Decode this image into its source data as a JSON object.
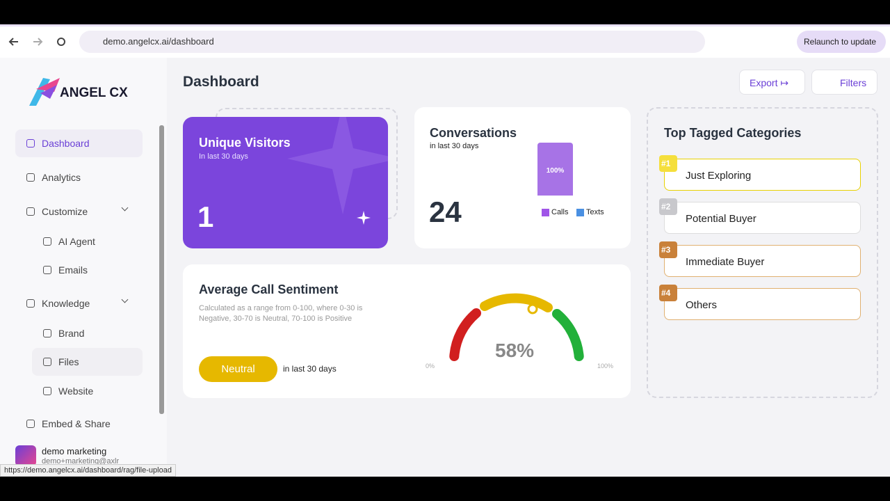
{
  "browser": {
    "url": "demo.angelcx.ai/dashboard",
    "relaunch": "Relaunch to update",
    "status_url": "https://demo.angelcx.ai/dashboard/rag/file-upload"
  },
  "sidebar": {
    "logo": "ANGEL CX",
    "nav": [
      {
        "label": "Dashboard"
      },
      {
        "label": "Analytics"
      },
      {
        "label": "Customize"
      },
      {
        "label": "AI Agent"
      },
      {
        "label": "Emails"
      },
      {
        "label": "Knowledge"
      },
      {
        "label": "Brand"
      },
      {
        "label": "Files"
      },
      {
        "label": "Website"
      },
      {
        "label": "Embed & Share"
      }
    ],
    "user": {
      "name": "demo marketing",
      "email": "demo+marketing@axlr"
    }
  },
  "header": {
    "title": "Dashboard",
    "export": "Export",
    "filters": "Filters"
  },
  "visitors": {
    "title": "Unique Visitors",
    "subtitle": "In last 30 days",
    "value": "1"
  },
  "conversations": {
    "title": "Conversations",
    "subtitle": "in last 30 days",
    "value": "24",
    "bar_label": "100%",
    "legend": [
      "Calls",
      "Texts"
    ]
  },
  "sentiment": {
    "title": "Average Call Sentiment",
    "description": "Calculated as a range from 0-100, where 0-30 is Negative, 30-70 is Neutral, 70-100 is Positive",
    "badge": "Neutral",
    "period": "in last 30 days",
    "gauge_value": "58%",
    "gauge_min": "0%",
    "gauge_max": "100%"
  },
  "categories": {
    "title": "Top Tagged Categories",
    "items": [
      {
        "rank": "#1",
        "label": "Just Exploring"
      },
      {
        "rank": "#2",
        "label": "Potential Buyer"
      },
      {
        "rank": "#3",
        "label": "Immediate Buyer"
      },
      {
        "rank": "#4",
        "label": "Others"
      }
    ]
  }
}
